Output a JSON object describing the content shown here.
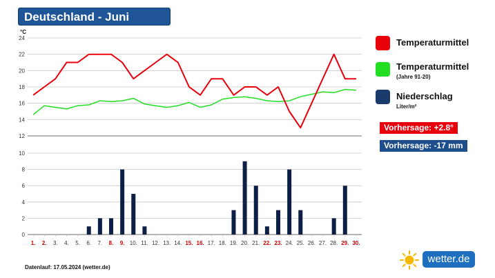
{
  "page": {
    "title": "Deutschland - Juni",
    "footer": "Datenlauf: 17.05.2024 (wetter.de)",
    "logo_text": "wetter",
    "logo_suffix": ".de"
  },
  "legend": [
    {
      "label": "Temperaturmittel",
      "sub": "",
      "color": "#e8000b"
    },
    {
      "label": "Temperaturmittel",
      "sub": "(Jahre 91-20)",
      "color": "#22dd22"
    },
    {
      "label": "Niederschlag",
      "sub": "Liter/m²",
      "color": "#1a3a6b"
    }
  ],
  "forecasts": [
    {
      "text": "Vorhersage: +2.8°",
      "color": "#e8000b"
    },
    {
      "text": "Vorhersage: -17 mm",
      "color": "#1f4e8c"
    }
  ],
  "chart_data": [
    {
      "type": "line",
      "ylabel": "°C",
      "ylim": [
        12,
        24
      ],
      "yticks": [
        12,
        14,
        16,
        18,
        20,
        22,
        24
      ],
      "grid": true,
      "series": [
        {
          "name": "Temperaturmittel",
          "color": "#e8000b",
          "values": [
            17,
            18,
            19,
            21,
            21,
            22,
            22,
            22,
            21,
            19,
            20,
            21,
            22,
            21,
            18,
            17,
            19,
            19,
            17,
            18,
            18,
            17,
            18,
            15,
            13,
            16,
            19,
            22,
            19,
            19
          ]
        },
        {
          "name": "Temperaturmittel (Jahre 91-20)",
          "color": "#22dd22",
          "values": [
            14.6,
            15.7,
            15.5,
            15.3,
            15.7,
            15.8,
            16.3,
            16.2,
            16.3,
            16.6,
            15.9,
            15.7,
            15.5,
            15.7,
            16.1,
            15.5,
            15.8,
            16.5,
            16.7,
            16.8,
            16.6,
            16.3,
            16.2,
            16.3,
            16.8,
            17.1,
            17.4,
            17.3,
            17.7,
            17.6
          ]
        }
      ]
    },
    {
      "type": "bar",
      "ylim": [
        0,
        10
      ],
      "yticks": [
        0,
        2,
        4,
        6,
        8,
        10
      ],
      "grid": true,
      "categories": [
        "1.",
        "2.",
        "3.",
        "4.",
        "5.",
        "6.",
        "7.",
        "8.",
        "9.",
        "10.",
        "11.",
        "12.",
        "13.",
        "14.",
        "15.",
        "16.",
        "17.",
        "18.",
        "19.",
        "20.",
        "21.",
        "22.",
        "23.",
        "24.",
        "25.",
        "26.",
        "27.",
        "28.",
        "29.",
        "30."
      ],
      "weekend_days": [
        1,
        2,
        8,
        9,
        15,
        16,
        22,
        23,
        29,
        30
      ],
      "weekend_color": "#cc0000",
      "series": [
        {
          "name": "Niederschlag",
          "color": "#0d1f45",
          "values": [
            0,
            0,
            0,
            0,
            0,
            1,
            2,
            2,
            8,
            5,
            1,
            0,
            0,
            0,
            0,
            0,
            0,
            0,
            3,
            9,
            6,
            1,
            3,
            8,
            3,
            0,
            0,
            2,
            6,
            0
          ]
        }
      ]
    }
  ]
}
